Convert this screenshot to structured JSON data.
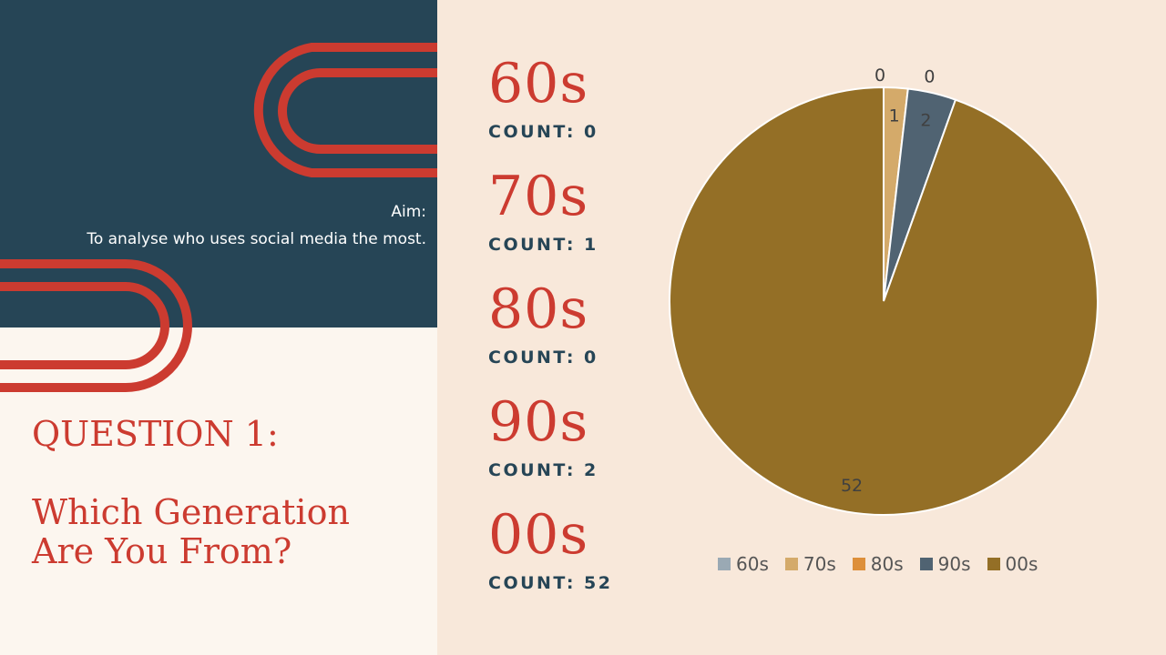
{
  "aim": {
    "label": "Aim:",
    "text": "To analyse who uses social media the most."
  },
  "question": {
    "title": "QUESTION 1:",
    "subtitle_line1": "Which Generation",
    "subtitle_line2": "Are You From?"
  },
  "stats": [
    {
      "decade": "60s",
      "count_label": "COUNT: 0"
    },
    {
      "decade": "70s",
      "count_label": "COUNT: 1"
    },
    {
      "decade": "80s",
      "count_label": "COUNT: 0"
    },
    {
      "decade": "90s",
      "count_label": "COUNT: 2"
    },
    {
      "decade": "00s",
      "count_label": "COUNT: 52"
    }
  ],
  "colors": {
    "navy": "#264556",
    "red": "#cc3b30",
    "cream": "#fcf6ef",
    "peach": "#f8e8da"
  },
  "chart_data": {
    "type": "pie",
    "categories": [
      "60s",
      "70s",
      "80s",
      "90s",
      "00s"
    ],
    "values": [
      0,
      1,
      0,
      2,
      52
    ],
    "data_labels": [
      "0",
      "1",
      "0",
      "2",
      "52"
    ],
    "colors": [
      "#9aa9b4",
      "#d4aa6a",
      "#dd8f3a",
      "#506372",
      "#946f26"
    ],
    "legend_position": "bottom"
  }
}
